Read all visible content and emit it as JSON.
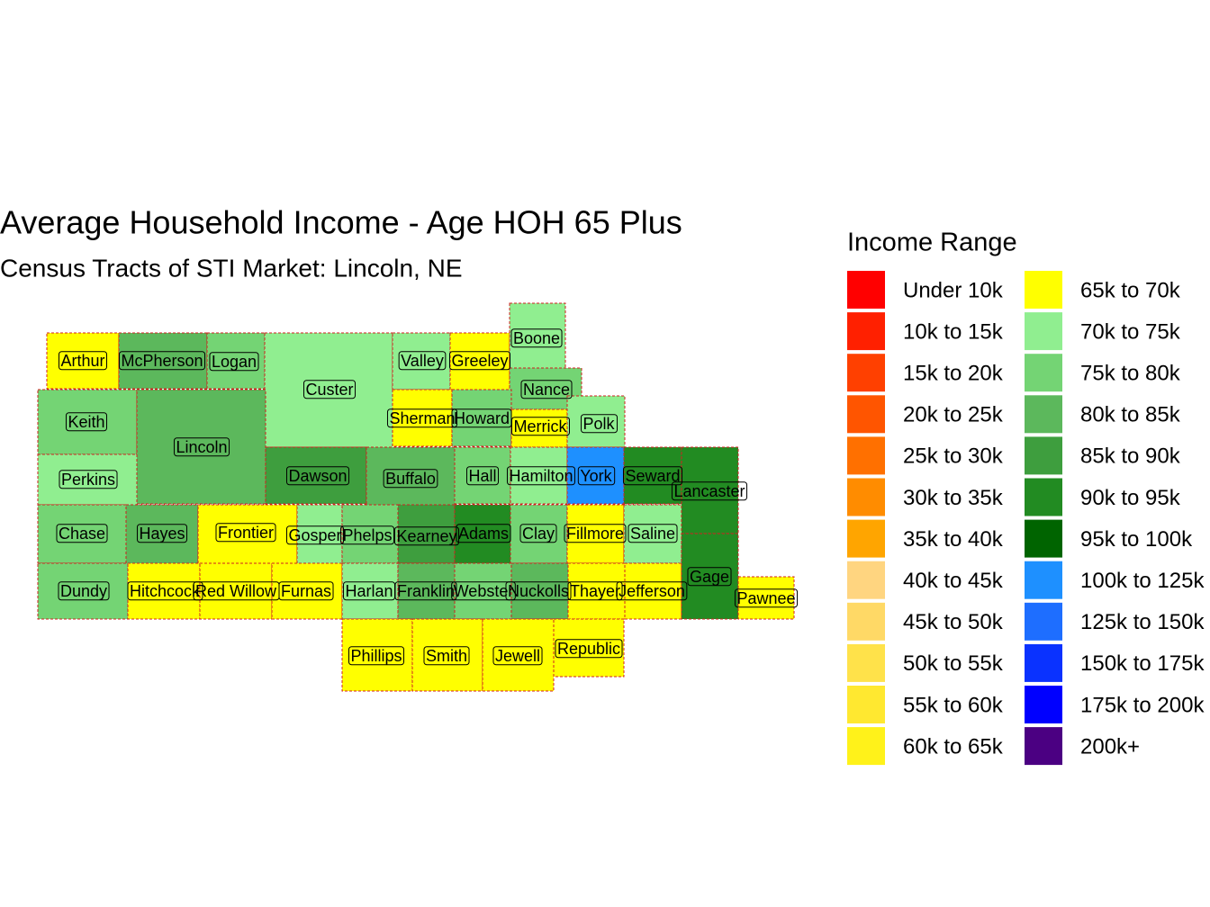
{
  "title": "Average Household Income - Age HOH 65 Plus",
  "subtitle": "Census Tracts of STI Market: Lincoln, NE",
  "legend": {
    "title": "Income Range",
    "items": [
      {
        "label": "Under 10k",
        "color": "#ff0000"
      },
      {
        "label": "10k to 15k",
        "color": "#ff2000"
      },
      {
        "label": "15k to 20k",
        "color": "#ff4000"
      },
      {
        "label": "20k to 25k",
        "color": "#ff5500"
      },
      {
        "label": "25k to 30k",
        "color": "#ff7000"
      },
      {
        "label": "30k to 35k",
        "color": "#ff8c00"
      },
      {
        "label": "35k to 40k",
        "color": "#ffa500"
      },
      {
        "label": "40k to 45k",
        "color": "#ffd580"
      },
      {
        "label": "45k to 50k",
        "color": "#ffd966"
      },
      {
        "label": "50k to 55k",
        "color": "#ffe24a"
      },
      {
        "label": "55k to 60k",
        "color": "#ffe830"
      },
      {
        "label": "60k to 65k",
        "color": "#fff21a"
      },
      {
        "label": "65k to 70k",
        "color": "#ffff00"
      },
      {
        "label": "70k to 75k",
        "color": "#90ee90"
      },
      {
        "label": "75k to 80k",
        "color": "#74d474"
      },
      {
        "label": "80k to 85k",
        "color": "#5cb85c"
      },
      {
        "label": "85k to 90k",
        "color": "#3e9e3e"
      },
      {
        "label": "90k to 95k",
        "color": "#228b22"
      },
      {
        "label": "95k to 100k",
        "color": "#006400"
      },
      {
        "label": "100k to 125k",
        "color": "#1e90ff"
      },
      {
        "label": "125k to 150k",
        "color": "#1e6eff"
      },
      {
        "label": "150k to 175k",
        "color": "#0a32ff"
      },
      {
        "label": "175k to 200k",
        "color": "#0000ff"
      },
      {
        "label": "200k+",
        "color": "#4b0082"
      }
    ]
  },
  "counties": [
    {
      "label": "Arthur",
      "color": "#ffff00"
    },
    {
      "label": "McPherson",
      "color": "#5cb85c"
    },
    {
      "label": "Logan",
      "color": "#74d474"
    },
    {
      "label": "Custer",
      "color": "#90ee90"
    },
    {
      "label": "Valley",
      "color": "#90ee90"
    },
    {
      "label": "Greeley",
      "color": "#ffff00"
    },
    {
      "label": "Boone",
      "color": "#90ee90"
    },
    {
      "label": "Nance",
      "color": "#74d474"
    },
    {
      "label": "Keith",
      "color": "#74d474"
    },
    {
      "label": "Lincoln",
      "color": "#5cb85c"
    },
    {
      "label": "Perkins",
      "color": "#90ee90"
    },
    {
      "label": "Sherman",
      "color": "#ffff00"
    },
    {
      "label": "Howard",
      "color": "#74d474"
    },
    {
      "label": "Merrick",
      "color": "#ffff00"
    },
    {
      "label": "Polk",
      "color": "#90ee90"
    },
    {
      "label": "Dawson",
      "color": "#3e9e3e"
    },
    {
      "label": "Buffalo",
      "color": "#5cb85c"
    },
    {
      "label": "Hall",
      "color": "#74d474"
    },
    {
      "label": "Hamilton",
      "color": "#90ee90"
    },
    {
      "label": "York",
      "color": "#1e90ff"
    },
    {
      "label": "Seward",
      "color": "#228b22"
    },
    {
      "label": "Lancaster",
      "color": "#228b22"
    },
    {
      "label": "Chase",
      "color": "#74d474"
    },
    {
      "label": "Hayes",
      "color": "#5cb85c"
    },
    {
      "label": "Frontier",
      "color": "#ffff00"
    },
    {
      "label": "Gosper",
      "color": "#90ee90"
    },
    {
      "label": "Phelps",
      "color": "#74d474"
    },
    {
      "label": "Kearney",
      "color": "#3e9e3e"
    },
    {
      "label": "Adams",
      "color": "#228b22"
    },
    {
      "label": "Clay",
      "color": "#74d474"
    },
    {
      "label": "Fillmore",
      "color": "#ffff00"
    },
    {
      "label": "Saline",
      "color": "#90ee90"
    },
    {
      "label": "Dundy",
      "color": "#74d474"
    },
    {
      "label": "Hitchcock",
      "color": "#ffff00"
    },
    {
      "label": "Red Willow",
      "color": "#ffff00"
    },
    {
      "label": "Furnas",
      "color": "#ffff00"
    },
    {
      "label": "Harlan",
      "color": "#90ee90"
    },
    {
      "label": "Franklin",
      "color": "#5cb85c"
    },
    {
      "label": "Webster",
      "color": "#74d474"
    },
    {
      "label": "Nuckolls",
      "color": "#5cb85c"
    },
    {
      "label": "Thayer",
      "color": "#ffff00"
    },
    {
      "label": "Jefferson",
      "color": "#ffff00"
    },
    {
      "label": "Gage",
      "color": "#228b22"
    },
    {
      "label": "Pawnee",
      "color": "#ffff00"
    },
    {
      "label": "Phillips",
      "color": "#ffff00"
    },
    {
      "label": "Smith",
      "color": "#ffff00"
    },
    {
      "label": "Jewell",
      "color": "#ffff00"
    },
    {
      "label": "Republic",
      "color": "#ffff00"
    }
  ]
}
